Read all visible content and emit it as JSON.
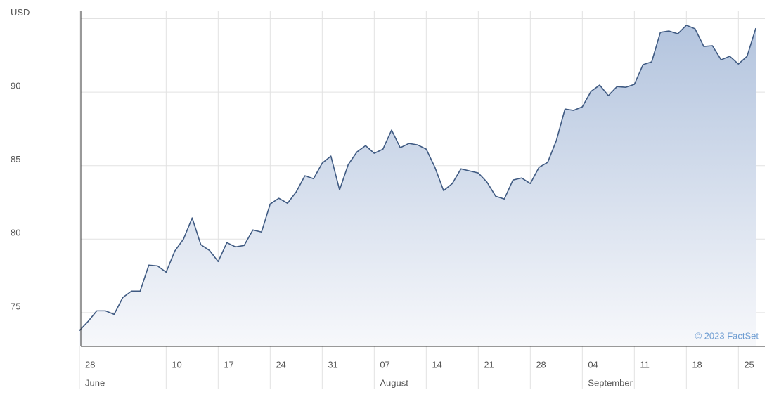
{
  "chart_data": {
    "type": "area",
    "categories": [
      "28",
      null,
      null,
      null,
      null,
      null,
      null,
      null,
      null,
      null,
      "10",
      null,
      null,
      null,
      null,
      null,
      "17",
      null,
      null,
      null,
      null,
      null,
      "24",
      null,
      null,
      null,
      null,
      null,
      "31",
      null,
      null,
      null,
      null,
      null,
      "07",
      null,
      null,
      null,
      null,
      null,
      "14",
      null,
      null,
      null,
      null,
      null,
      "21",
      null,
      null,
      null,
      null,
      null,
      "28",
      null,
      null,
      null,
      null,
      null,
      "04",
      null,
      null,
      null,
      null,
      null,
      "11",
      null,
      null,
      null,
      null,
      null,
      "18",
      null,
      null,
      null,
      null,
      null,
      "25",
      null,
      null
    ],
    "months": [
      "June",
      null,
      null,
      null,
      null,
      null,
      null,
      null,
      null,
      null,
      null,
      null,
      null,
      null,
      null,
      null,
      null,
      null,
      null,
      null,
      null,
      null,
      null,
      null,
      null,
      null,
      null,
      null,
      null,
      null,
      null,
      null,
      null,
      null,
      "August",
      null,
      null,
      null,
      null,
      null,
      null,
      null,
      null,
      null,
      null,
      null,
      null,
      null,
      null,
      null,
      null,
      null,
      null,
      null,
      null,
      null,
      null,
      null,
      "September",
      null,
      null,
      null,
      null,
      null,
      null,
      null,
      null,
      null,
      null,
      null,
      null,
      null,
      null,
      null,
      null,
      null,
      null,
      null,
      null
    ],
    "values": [
      73.78,
      74.4,
      75.12,
      75.12,
      74.88,
      76.03,
      76.46,
      76.46,
      78.23,
      78.18,
      77.75,
      79.19,
      80.0,
      81.44,
      79.62,
      79.23,
      78.47,
      79.76,
      79.47,
      79.57,
      80.62,
      80.48,
      82.39,
      82.78,
      82.44,
      83.21,
      84.31,
      84.11,
      85.17,
      85.65,
      83.35,
      85.07,
      85.93,
      86.36,
      85.84,
      86.12,
      87.42,
      86.22,
      86.51,
      86.41,
      86.12,
      84.88,
      83.3,
      83.78,
      84.78,
      84.64,
      84.5,
      83.88,
      82.92,
      82.73,
      84.02,
      84.16,
      83.78,
      84.88,
      85.22,
      86.7,
      88.85,
      88.76,
      89.0,
      90.05,
      90.48,
      89.76,
      90.38,
      90.33,
      90.53,
      91.87,
      92.06,
      94.07,
      94.16,
      93.97,
      94.55,
      94.31,
      93.11,
      93.16,
      92.2,
      92.44,
      91.91,
      92.44,
      94.35
    ],
    "color": "#3f5a82",
    "ylim": [
      72.7,
      95.55
    ],
    "yticks": [
      75,
      80,
      85,
      90,
      {
        "value": 95,
        "label": "USD"
      }
    ],
    "grid": true,
    "annotation": "© 2023 FactSet"
  }
}
